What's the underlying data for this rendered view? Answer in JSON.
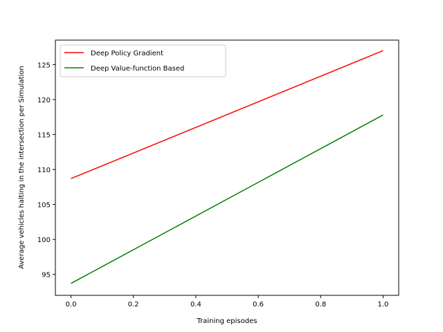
{
  "chart_data": {
    "type": "line",
    "xlabel": "Training episodes",
    "ylabel": "Average vehicles halting in the intersection per Simulation",
    "xlim": [
      -0.05,
      1.05
    ],
    "ylim": [
      92.0,
      128.5
    ],
    "xticks": [
      "0.0",
      "0.2",
      "0.4",
      "0.6",
      "0.8",
      "1.0"
    ],
    "yticks": [
      "95",
      "100",
      "105",
      "110",
      "115",
      "120",
      "125"
    ],
    "grid": false,
    "legend_position": "upper left",
    "series": [
      {
        "name": "Deep Policy Gradient",
        "color": "#ff0000",
        "x": [
          0.0,
          1.0
        ],
        "y": [
          108.7,
          127.0
        ]
      },
      {
        "name": "Deep Value-function Based",
        "color": "#008000",
        "x": [
          0.0,
          1.0
        ],
        "y": [
          93.7,
          117.8
        ]
      }
    ]
  }
}
